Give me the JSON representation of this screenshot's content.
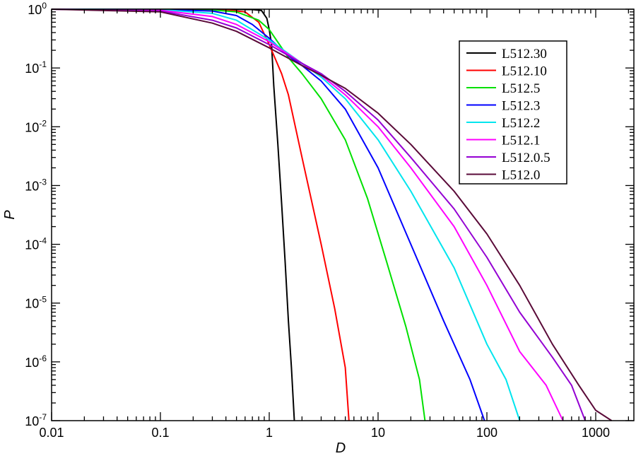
{
  "chart_data": {
    "type": "line",
    "title": "",
    "xlabel": "D",
    "ylabel": "P",
    "xscale": "log",
    "yscale": "log",
    "xlim": [
      0.01,
      2000
    ],
    "ylim": [
      1e-07,
      1
    ],
    "x_tick_labels": [
      "0.01",
      "0.1",
      "1",
      "10",
      "100",
      "1000"
    ],
    "y_tick_labels": [
      {
        "base": "10",
        "exp": "0"
      },
      {
        "base": "10",
        "exp": "-1"
      },
      {
        "base": "10",
        "exp": "-2"
      },
      {
        "base": "10",
        "exp": "-3"
      },
      {
        "base": "10",
        "exp": "-4"
      },
      {
        "base": "10",
        "exp": "-5"
      },
      {
        "base": "10",
        "exp": "-6"
      },
      {
        "base": "10",
        "exp": "-7"
      }
    ],
    "legend_position": "top-right",
    "grid": false,
    "series": [
      {
        "name": "L512.30",
        "color": "#000000",
        "points": [
          [
            0.01,
            1
          ],
          [
            0.3,
            1
          ],
          [
            0.5,
            0.99
          ],
          [
            0.7,
            0.985
          ],
          [
            0.85,
            0.95
          ],
          [
            0.95,
            0.7
          ],
          [
            1.0,
            0.45
          ],
          [
            1.05,
            0.25
          ],
          [
            1.1,
            0.05
          ],
          [
            1.2,
            0.005
          ],
          [
            1.3,
            0.0005
          ],
          [
            1.4,
            5e-05
          ],
          [
            1.5,
            5e-06
          ],
          [
            1.6,
            8e-07
          ],
          [
            1.7,
            1e-07
          ]
        ]
      },
      {
        "name": "L512.10",
        "color": "#ff0000",
        "points": [
          [
            0.01,
            1
          ],
          [
            0.2,
            0.99
          ],
          [
            0.4,
            0.97
          ],
          [
            0.6,
            0.9
          ],
          [
            0.8,
            0.6
          ],
          [
            1.0,
            0.25
          ],
          [
            1.3,
            0.08
          ],
          [
            1.5,
            0.035
          ],
          [
            2,
            0.003
          ],
          [
            3,
            0.0001
          ],
          [
            4,
            8e-06
          ],
          [
            5,
            8e-07
          ],
          [
            5.4,
            1e-07
          ]
        ]
      },
      {
        "name": "L512.5",
        "color": "#00e000",
        "points": [
          [
            0.01,
            1
          ],
          [
            0.1,
            0.995
          ],
          [
            0.3,
            0.97
          ],
          [
            0.5,
            0.9
          ],
          [
            0.8,
            0.65
          ],
          [
            1,
            0.45
          ],
          [
            1.5,
            0.15
          ],
          [
            2,
            0.08
          ],
          [
            3,
            0.03
          ],
          [
            5,
            0.006
          ],
          [
            8,
            0.0006
          ],
          [
            12,
            5e-05
          ],
          [
            18,
            4e-06
          ],
          [
            24,
            5e-07
          ],
          [
            27,
            1e-07
          ]
        ]
      },
      {
        "name": "L512.3",
        "color": "#0000ff",
        "points": [
          [
            0.01,
            1
          ],
          [
            0.1,
            0.99
          ],
          [
            0.3,
            0.93
          ],
          [
            0.5,
            0.78
          ],
          [
            0.7,
            0.55
          ],
          [
            1,
            0.32
          ],
          [
            1.5,
            0.16
          ],
          [
            2,
            0.11
          ],
          [
            3,
            0.06
          ],
          [
            5,
            0.02
          ],
          [
            10,
            0.002
          ],
          [
            20,
            0.0001
          ],
          [
            40,
            5e-06
          ],
          [
            70,
            5e-07
          ],
          [
            95,
            1e-07
          ]
        ]
      },
      {
        "name": "L512.2",
        "color": "#00e5ee",
        "points": [
          [
            0.01,
            1
          ],
          [
            0.1,
            0.98
          ],
          [
            0.3,
            0.85
          ],
          [
            0.5,
            0.65
          ],
          [
            1,
            0.3
          ],
          [
            2,
            0.12
          ],
          [
            3,
            0.07
          ],
          [
            5,
            0.03
          ],
          [
            10,
            0.006
          ],
          [
            20,
            0.0008
          ],
          [
            50,
            4e-05
          ],
          [
            100,
            2e-06
          ],
          [
            150,
            5e-07
          ],
          [
            200,
            1e-07
          ]
        ]
      },
      {
        "name": "L512.1",
        "color": "#ff00ff",
        "points": [
          [
            0.01,
            1
          ],
          [
            0.1,
            0.96
          ],
          [
            0.3,
            0.75
          ],
          [
            0.5,
            0.55
          ],
          [
            1,
            0.28
          ],
          [
            2,
            0.12
          ],
          [
            3,
            0.075
          ],
          [
            5,
            0.035
          ],
          [
            10,
            0.01
          ],
          [
            20,
            0.002
          ],
          [
            50,
            0.0002
          ],
          [
            100,
            2e-05
          ],
          [
            200,
            1.5e-06
          ],
          [
            350,
            4e-07
          ],
          [
            500,
            1e-07
          ]
        ]
      },
      {
        "name": "L512.0.5",
        "color": "#9400d3",
        "points": [
          [
            0.01,
            1
          ],
          [
            0.1,
            0.93
          ],
          [
            0.3,
            0.65
          ],
          [
            0.5,
            0.48
          ],
          [
            1,
            0.25
          ],
          [
            2,
            0.12
          ],
          [
            3,
            0.08
          ],
          [
            5,
            0.04
          ],
          [
            10,
            0.013
          ],
          [
            20,
            0.003
          ],
          [
            50,
            0.0004
          ],
          [
            100,
            6e-05
          ],
          [
            200,
            7e-06
          ],
          [
            400,
            1.2e-06
          ],
          [
            600,
            4e-07
          ],
          [
            800,
            1e-07
          ]
        ]
      },
      {
        "name": "L512.0",
        "color": "#5a0a38",
        "points": [
          [
            0.01,
            1
          ],
          [
            0.1,
            0.9
          ],
          [
            0.3,
            0.58
          ],
          [
            0.5,
            0.42
          ],
          [
            1,
            0.22
          ],
          [
            2,
            0.11
          ],
          [
            3,
            0.075
          ],
          [
            5,
            0.045
          ],
          [
            10,
            0.017
          ],
          [
            20,
            0.005
          ],
          [
            50,
            0.0008
          ],
          [
            100,
            0.00015
          ],
          [
            200,
            2e-05
          ],
          [
            400,
            2e-06
          ],
          [
            700,
            4e-07
          ],
          [
            1000,
            1.5e-07
          ],
          [
            1400,
            1e-07
          ]
        ]
      }
    ]
  }
}
